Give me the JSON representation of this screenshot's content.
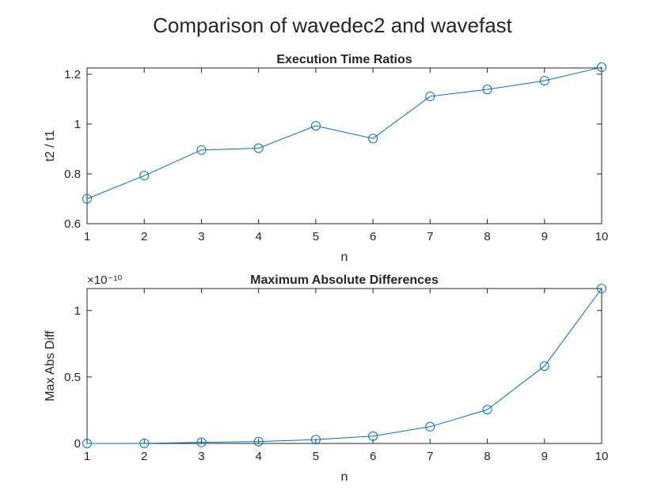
{
  "figure": {
    "title": "Comparison of wavedec2 and wavefast"
  },
  "chart_data": [
    {
      "type": "line",
      "title": "Execution Time Ratios",
      "xlabel": "n",
      "ylabel": "t2 / t1",
      "x": [
        1,
        2,
        3,
        4,
        5,
        6,
        7,
        8,
        9,
        10
      ],
      "series": [
        {
          "values": [
            0.7,
            0.793,
            0.896,
            0.903,
            0.993,
            0.942,
            1.111,
            1.139,
            1.174,
            1.228
          ]
        }
      ],
      "xlim": [
        1,
        10
      ],
      "ylim": [
        0.6,
        1.225
      ],
      "xticks": [
        1,
        2,
        3,
        4,
        5,
        6,
        7,
        8,
        9,
        10
      ],
      "yticks": [
        0.6,
        0.8,
        1,
        1.2
      ],
      "ytick_labels": [
        "0.6",
        "0.8",
        "1",
        "1.2"
      ],
      "marker": "circle",
      "color": "#0072BD",
      "grid": false
    },
    {
      "type": "line",
      "title": "Maximum Absolute Differences",
      "xlabel": "n",
      "ylabel": "Max Abs Diff",
      "y_exponent_label": "×10⁻¹⁰",
      "x": [
        1,
        2,
        3,
        4,
        5,
        6,
        7,
        8,
        9,
        10
      ],
      "series": [
        {
          "values": [
            0.0,
            1e-13,
            8e-13,
            1.4e-12,
            2.9e-12,
            5.5e-12,
            1.26e-11,
            2.54e-11,
            5.82e-11,
            1.165e-10
          ]
        }
      ],
      "xlim": [
        1,
        10
      ],
      "ylim": [
        0,
        1.165e-10
      ],
      "xticks": [
        1,
        2,
        3,
        4,
        5,
        6,
        7,
        8,
        9,
        10
      ],
      "yticks": [
        0,
        5e-11,
        1e-10
      ],
      "ytick_labels": [
        "0",
        "0.5",
        "1"
      ],
      "marker": "circle",
      "color": "#0072BD",
      "grid": false
    }
  ]
}
